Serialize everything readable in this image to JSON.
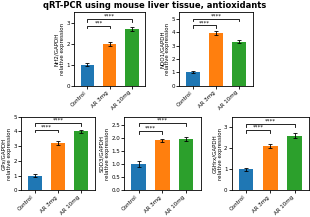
{
  "title": "qRT-PCR using mouse liver tissue, antioxidants",
  "chart_data": [
    {
      "type": "bar",
      "ylabel": "Nrf2/GAPDH\nrelative expression",
      "categories": [
        "Control",
        "AR 3mg",
        "AR 10mg"
      ],
      "values": [
        1.0,
        2.0,
        2.7
      ],
      "errors": [
        0.07,
        0.1,
        0.1
      ],
      "ylim": [
        0,
        3.5
      ],
      "yticks": [
        0,
        1,
        2,
        3
      ],
      "annotations": [
        {
          "from": "Control",
          "to": "AR 3mg",
          "y": 2.85,
          "text": "***"
        },
        {
          "from": "Control",
          "to": "AR 10mg",
          "y": 3.15,
          "text": "****"
        }
      ]
    },
    {
      "type": "bar",
      "ylabel": "NQO1/GAPDH\nrelative expression",
      "categories": [
        "Control",
        "AR 3mg",
        "AR 10mg"
      ],
      "values": [
        1.0,
        3.9,
        3.3
      ],
      "errors": [
        0.08,
        0.15,
        0.12
      ],
      "ylim": [
        0,
        5.5
      ],
      "yticks": [
        0,
        1,
        2,
        3,
        4,
        5
      ],
      "annotations": [
        {
          "from": "Control",
          "to": "AR 3mg",
          "y": 4.5,
          "text": "****"
        },
        {
          "from": "Control",
          "to": "AR 10mg",
          "y": 5.0,
          "text": "****"
        }
      ]
    },
    {
      "type": "bar",
      "ylabel": "GPx/GAPDH\nrelative expression",
      "categories": [
        "Control",
        "AR 3mg",
        "AR 10mg"
      ],
      "values": [
        1.0,
        3.2,
        4.0
      ],
      "errors": [
        0.12,
        0.15,
        0.12
      ],
      "ylim": [
        0,
        5.0
      ],
      "yticks": [
        0,
        1,
        2,
        3,
        4,
        5
      ],
      "annotations": [
        {
          "from": "Control",
          "to": "AR 3mg",
          "y": 4.1,
          "text": "****"
        },
        {
          "from": "Control",
          "to": "AR 10mg",
          "y": 4.55,
          "text": "****"
        }
      ]
    },
    {
      "type": "bar",
      "ylabel": "SOD3/GAPDH\nrelative expression",
      "categories": [
        "Control",
        "AR 3mg",
        "AR 10mg"
      ],
      "values": [
        1.0,
        1.9,
        1.95
      ],
      "errors": [
        0.1,
        0.07,
        0.07
      ],
      "ylim": [
        0,
        2.8
      ],
      "yticks": [
        0.0,
        0.5,
        1.0,
        1.5,
        2.0,
        2.5
      ],
      "annotations": [
        {
          "from": "Control",
          "to": "AR 3mg",
          "y": 2.25,
          "text": "****"
        },
        {
          "from": "Control",
          "to": "AR 10mg",
          "y": 2.55,
          "text": "****"
        }
      ]
    },
    {
      "type": "bar",
      "ylabel": "GSHrx/GAPDH\nrelative expression",
      "categories": [
        "Control",
        "AR 3mg",
        "AR 10mg"
      ],
      "values": [
        1.0,
        2.1,
        2.6
      ],
      "errors": [
        0.07,
        0.08,
        0.1
      ],
      "ylim": [
        0,
        3.5
      ],
      "yticks": [
        0,
        1,
        2,
        3
      ],
      "annotations": [
        {
          "from": "Control",
          "to": "AR 3mg",
          "y": 2.85,
          "text": "****"
        },
        {
          "from": "Control",
          "to": "AR 10mg",
          "y": 3.15,
          "text": "****"
        }
      ]
    }
  ]
}
